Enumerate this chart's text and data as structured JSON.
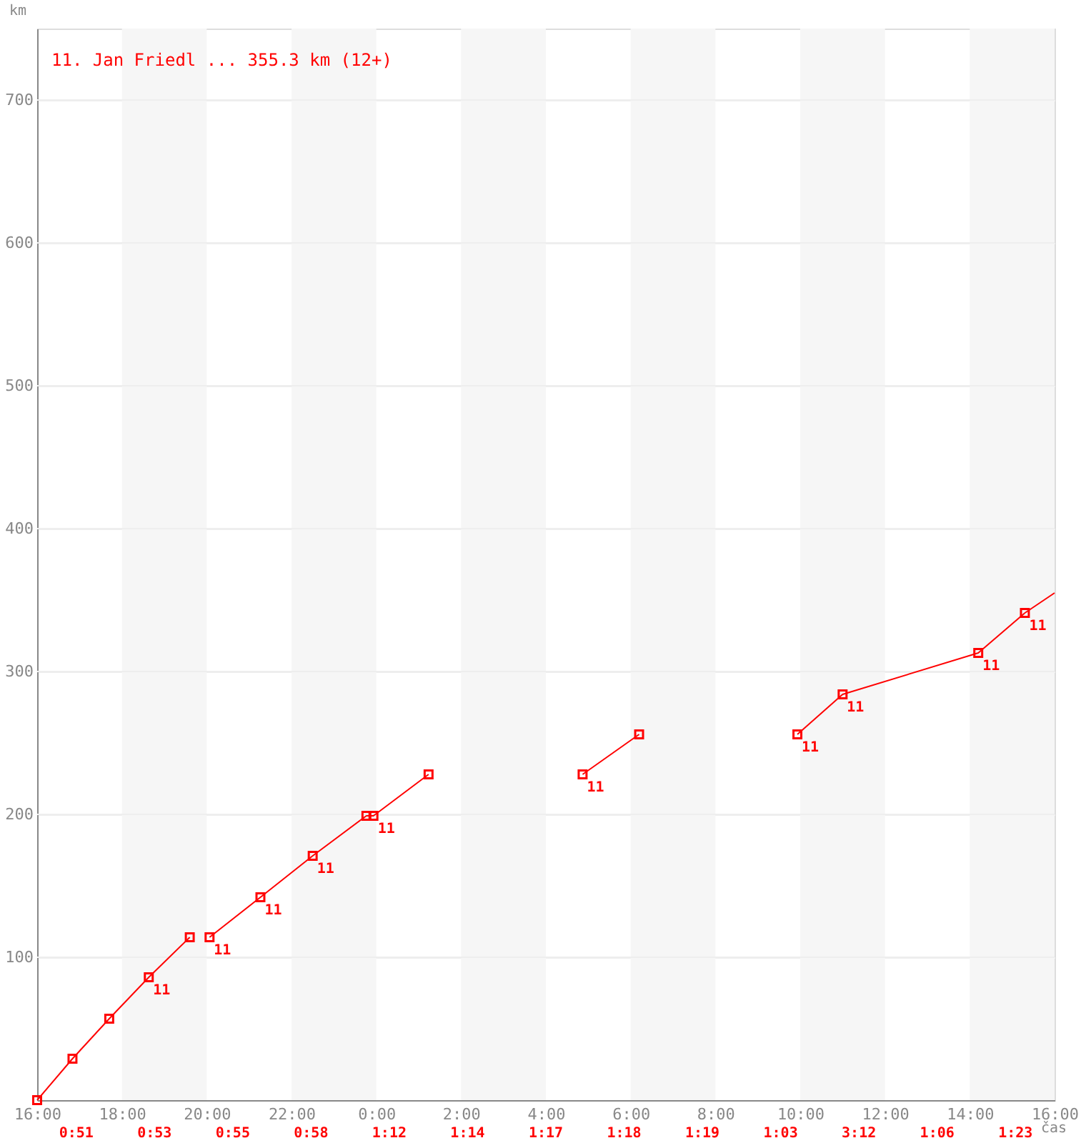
{
  "chart_data": {
    "type": "line",
    "xlabel": "čas",
    "ylabel": "km",
    "series": [
      {
        "name": "11. Jan Friedl ... 355.3 km (12+)",
        "color": "#ff0000",
        "marker": "square",
        "x": [
          "2000-01-01T16:00",
          "2000-01-01T16:50",
          "2000-01-01T17:42",
          "2000-01-01T18:38",
          "2000-01-01T19:36",
          "2000-01-01T19:51",
          "2000-01-01T20:04",
          "2000-01-01T21:16",
          "2000-01-01T22:30",
          "2000-01-01T23:46",
          "2000-01-01T23:56",
          "2000-01-02T01:14",
          "2000-01-02T03:00",
          "2000-01-02T04:52",
          "2000-01-02T06:12",
          "2000-01-02T08:00",
          "2000-01-02T09:56",
          "2000-01-02T11:00",
          "2000-01-02T14:12",
          "2000-01-02T15:18"
        ],
        "values": [
          0,
          29,
          57,
          86,
          114,
          null,
          114,
          142,
          171,
          199,
          199,
          228,
          null,
          228,
          256,
          null,
          256,
          284,
          313,
          341
        ]
      },
      {
        "color": "#ff0000",
        "marker": "none",
        "x": [
          "2000-01-02T15:18",
          "2000-01-02T16:00"
        ],
        "values": [
          341,
          355
        ]
      }
    ],
    "legend": "top left",
    "grid": "y",
    "xlim": [
      "2000-01-01T16:00",
      "2000-01-02T16:00"
    ],
    "ylim": [
      0,
      750
    ],
    "xticks": [
      {
        "value": "2000-01-01T16:00",
        "label": "16:00"
      },
      {
        "value": "2000-01-01T18:00",
        "label": "18:00"
      },
      {
        "value": "2000-01-01T20:00",
        "label": "20:00"
      },
      {
        "value": "2000-01-01T22:00",
        "label": "22:00"
      },
      {
        "value": "2000-01-02T00:00",
        "label": "0:00"
      },
      {
        "value": "2000-01-02T02:00",
        "label": "2:00"
      },
      {
        "value": "2000-01-02T04:00",
        "label": "4:00"
      },
      {
        "value": "2000-01-02T06:00",
        "label": "6:00"
      },
      {
        "value": "2000-01-02T08:00",
        "label": "8:00"
      },
      {
        "value": "2000-01-02T10:00",
        "label": "10:00"
      },
      {
        "value": "2000-01-02T12:00",
        "label": "12:00"
      },
      {
        "value": "2000-01-02T14:00",
        "label": "14:00"
      },
      {
        "value": "2000-01-02T16:00",
        "label": "16:00"
      }
    ],
    "yticks": [
      100,
      200,
      300,
      400,
      500,
      600,
      700
    ],
    "bands": [
      {
        "axis": "x",
        "from": "2000-01-01T18:00",
        "to": "2000-01-01T20:00",
        "color": "#f6f6f6"
      },
      {
        "axis": "x",
        "from": "2000-01-01T22:00",
        "to": "2000-01-02T00:00",
        "color": "#f6f6f6"
      },
      {
        "axis": "x",
        "from": "2000-01-02T02:00",
        "to": "2000-01-02T04:00",
        "color": "#f6f6f6"
      },
      {
        "axis": "x",
        "from": "2000-01-02T06:00",
        "to": "2000-01-02T08:00",
        "color": "#f6f6f6"
      },
      {
        "axis": "x",
        "from": "2000-01-02T10:00",
        "to": "2000-01-02T12:00",
        "color": "#f6f6f6"
      },
      {
        "axis": "x",
        "from": "2000-01-02T14:00",
        "to": "2000-01-02T16:00",
        "color": "#f6f6f6"
      }
    ],
    "annotations": [
      {
        "text": "11",
        "x": "2000-01-01T18:38",
        "y": 86
      },
      {
        "text": "11",
        "x": "2000-01-01T20:04",
        "y": 114
      },
      {
        "text": "11",
        "x": "2000-01-01T21:16",
        "y": 142
      },
      {
        "text": "11",
        "x": "2000-01-01T22:30",
        "y": 171
      },
      {
        "text": "11",
        "x": "2000-01-01T23:56",
        "y": 199
      },
      {
        "text": "11",
        "x": "2000-01-02T04:52",
        "y": 228
      },
      {
        "text": "11",
        "x": "2000-01-02T09:56",
        "y": 256
      },
      {
        "text": "11",
        "x": "2000-01-02T11:00",
        "y": 284
      },
      {
        "text": "11",
        "x": "2000-01-02T14:12",
        "y": 313
      },
      {
        "text": "11",
        "x": "2000-01-02T15:18",
        "y": 341
      },
      "0:51",
      "0:53",
      "0:55",
      "0:58",
      "1:12",
      "1:14",
      "1:17",
      "1:18",
      "1:19",
      "1:03",
      "3:12",
      "1:06",
      "1:23"
    ]
  }
}
